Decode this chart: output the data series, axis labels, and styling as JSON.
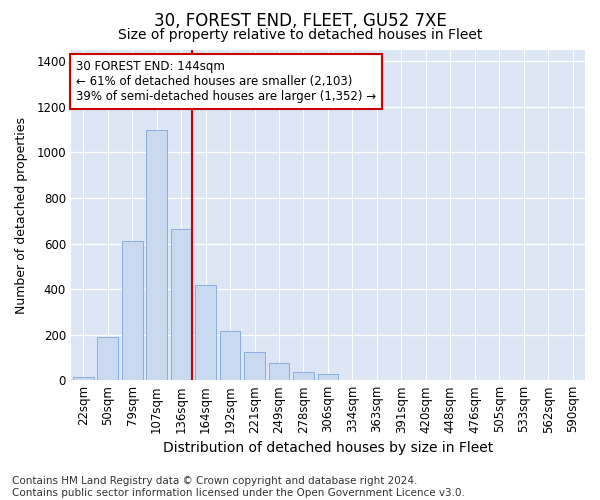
{
  "title": "30, FOREST END, FLEET, GU52 7XE",
  "subtitle": "Size of property relative to detached houses in Fleet",
  "xlabel": "Distribution of detached houses by size in Fleet",
  "ylabel": "Number of detached properties",
  "categories": [
    "22sqm",
    "50sqm",
    "79sqm",
    "107sqm",
    "136sqm",
    "164sqm",
    "192sqm",
    "221sqm",
    "249sqm",
    "278sqm",
    "306sqm",
    "334sqm",
    "363sqm",
    "391sqm",
    "420sqm",
    "448sqm",
    "476sqm",
    "505sqm",
    "533sqm",
    "562sqm",
    "590sqm"
  ],
  "values": [
    15,
    190,
    610,
    1100,
    665,
    420,
    215,
    125,
    75,
    38,
    25,
    0,
    0,
    0,
    0,
    0,
    0,
    0,
    0,
    0,
    0
  ],
  "bar_color": "#c9d9f0",
  "bar_edge_color": "#7da6d8",
  "vline_color": "#cc0000",
  "vline_x_index": 4,
  "annotation_text": "30 FOREST END: 144sqm\n← 61% of detached houses are smaller (2,103)\n39% of semi-detached houses are larger (1,352) →",
  "annotation_box_facecolor": "#ffffff",
  "annotation_box_edgecolor": "#cc0000",
  "ylim": [
    0,
    1450
  ],
  "yticks": [
    0,
    200,
    400,
    600,
    800,
    1000,
    1200,
    1400
  ],
  "footnote": "Contains HM Land Registry data © Crown copyright and database right 2024.\nContains public sector information licensed under the Open Government Licence v3.0.",
  "bg_color": "#ffffff",
  "plot_bg_color": "#dce6f5",
  "grid_color": "#ffffff",
  "title_fontsize": 12,
  "subtitle_fontsize": 10,
  "xlabel_fontsize": 10,
  "ylabel_fontsize": 9,
  "tick_fontsize": 8.5,
  "annotation_fontsize": 8.5,
  "footnote_fontsize": 7.5
}
